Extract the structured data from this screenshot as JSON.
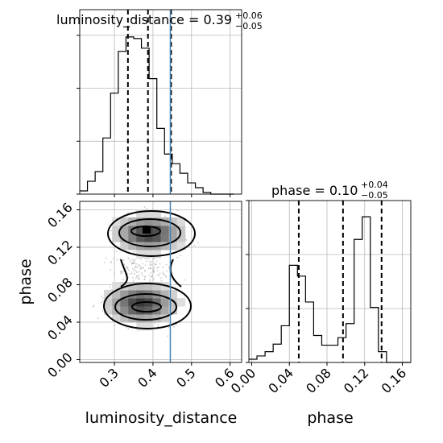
{
  "chart_data": {
    "type": "corner",
    "parameters": [
      "luminosity_distance",
      "phase"
    ],
    "truth": {
      "luminosity_distance": 0.445,
      "phase": null
    },
    "panels": [
      {
        "id": "luminosity_distance-hist",
        "type": "histogram",
        "title_main": "luminosity_distance = 0.39",
        "title_plus": "+0.06",
        "title_minus": "−0.05",
        "quantiles": [
          0.335,
          0.387,
          0.447
        ],
        "xlim": [
          0.21,
          0.63
        ],
        "bins_start": 0.21,
        "bin_width": 0.02,
        "counts": [
          2,
          8,
          14,
          35,
          63,
          89,
          98,
          97,
          91,
          72,
          41,
          25,
          19,
          13,
          7,
          4,
          1,
          0,
          0,
          0
        ],
        "ylim": [
          0,
          110
        ],
        "yticks": [
          0,
          33,
          66,
          99
        ]
      },
      {
        "id": "phase-hist",
        "type": "histogram",
        "title_main": "phase = 0.10",
        "title_plus": "+0.04",
        "title_minus": "−0.05",
        "quantiles": [
          0.05,
          0.097,
          0.138
        ],
        "xlim": [
          -0.003,
          0.169
        ],
        "bins_start": -0.003,
        "bin_width": 0.0086,
        "counts": [
          3,
          6,
          10,
          17,
          34,
          90,
          80,
          56,
          25,
          16,
          16,
          23,
          36,
          114,
          135,
          51,
          10,
          0,
          0,
          0
        ],
        "ylim": [
          0,
          150
        ],
        "yticks": [
          0,
          50,
          100,
          150
        ],
        "xticks": [
          "0.00",
          "0.04",
          "0.08",
          "0.12",
          "0.16"
        ],
        "xtick_values": [
          0.0,
          0.04,
          0.08,
          0.12,
          0.16
        ],
        "xlabel": "phase"
      },
      {
        "id": "joint",
        "type": "2d-density",
        "xlim": [
          0.21,
          0.63
        ],
        "ylim": [
          -0.003,
          0.169
        ],
        "xticks": [
          "0.3",
          "0.4",
          "0.5",
          "0.6"
        ],
        "xtick_values": [
          0.3,
          0.4,
          0.5,
          0.6
        ],
        "yticks": [
          "0.00",
          "0.04",
          "0.08",
          "0.12",
          "0.16"
        ],
        "ytick_values": [
          0.0,
          0.04,
          0.08,
          0.12,
          0.16
        ],
        "xlabel": "luminosity_distance",
        "ylabel": "phase",
        "modes": [
          {
            "x": 0.39,
            "y": 0.135,
            "sx": 0.05,
            "sy": 0.011
          },
          {
            "x": 0.37,
            "y": 0.06,
            "sx": 0.05,
            "sy": 0.012
          }
        ]
      }
    ]
  }
}
